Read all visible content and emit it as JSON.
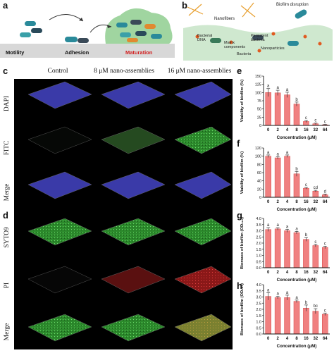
{
  "panels": {
    "a": {
      "label": "a",
      "stages": [
        "Motility",
        "Adhesion",
        "Maturation"
      ],
      "maturation_color": "#d22020"
    },
    "b": {
      "label": "b",
      "labels": {
        "nanofibers": "Nanofibers",
        "biofilm_disruption": "Biofilm disruption",
        "bacterial_dna": "Bacterial DNA",
        "matrix_components": "Matrix components",
        "persistent_bacteria": "Persistent bacteria",
        "nanoparticles": "Nanoparticles",
        "bacteria": "Bacteria"
      }
    },
    "c": {
      "label": "c",
      "columns": [
        "Control",
        "8 μM nano-assemblies",
        "16 μM nano-assemblies"
      ],
      "rows": [
        "DAPI",
        "FITC",
        "Merge"
      ]
    },
    "d": {
      "label": "d",
      "rows": [
        "SYTO9",
        "PI",
        "Merge"
      ]
    }
  },
  "colors": {
    "bar": "#f08080",
    "bar_edge": "#d94848",
    "dapi": "#3a3aa8",
    "fitc": "#2f6a2a",
    "syto9": "#35a535",
    "pi": "#b02020",
    "merge2": "#8a8a30"
  },
  "chart_data": [
    {
      "panel": "e",
      "type": "bar",
      "categories": [
        "0",
        "2",
        "4",
        "8",
        "16",
        "32",
        "64"
      ],
      "values": [
        100,
        99,
        93,
        65,
        12,
        5,
        2
      ],
      "errors": [
        12,
        8,
        8,
        6,
        3,
        2,
        1
      ],
      "letters": [
        "a",
        "a",
        "a",
        "b",
        "c",
        "c",
        "c"
      ],
      "xlabel": "Concentration (μM)",
      "ylabel": "Viability of biofilm (%)",
      "ylim": [
        0,
        150
      ],
      "yticks": [
        "0",
        "25",
        "50",
        "75",
        "100",
        "125",
        "150"
      ]
    },
    {
      "panel": "f",
      "type": "bar",
      "categories": [
        "0",
        "2",
        "4",
        "8",
        "16",
        "32",
        "64"
      ],
      "values": [
        100,
        96,
        100,
        57,
        22,
        15,
        6
      ],
      "errors": [
        3,
        3,
        3,
        6,
        2,
        2,
        2
      ],
      "letters": [
        "a",
        "a",
        "a",
        "b",
        "c",
        "cd",
        "d"
      ],
      "xlabel": "Concentration (μM)",
      "ylabel": "Viability of biofilm (%)",
      "ylim": [
        0,
        120
      ],
      "yticks": [
        "0",
        "20",
        "40",
        "60",
        "80",
        "100",
        "120"
      ]
    },
    {
      "panel": "g",
      "type": "bar",
      "categories": [
        "0",
        "2",
        "4",
        "8",
        "16",
        "32",
        "64"
      ],
      "values": [
        3.1,
        3.15,
        3.0,
        2.85,
        2.3,
        1.8,
        1.65
      ],
      "errors": [
        0.15,
        0.1,
        0.12,
        0.1,
        0.15,
        0.1,
        0.1
      ],
      "letters": [
        "a",
        "a",
        "a",
        "a",
        "b",
        "c",
        "c"
      ],
      "xlabel": "Concentration (μM)",
      "ylabel": "Biomass of biofilm (OD₅₉₀)",
      "ylim": [
        0.0,
        4.0
      ],
      "yticks": [
        "0.0",
        "0.5",
        "1.0",
        "1.5",
        "2.0",
        "2.5",
        "3.0",
        "3.5",
        "4.0"
      ]
    },
    {
      "panel": "h",
      "type": "bar",
      "categories": [
        "0",
        "2",
        "4",
        "8",
        "16",
        "32",
        "64"
      ],
      "values": [
        3.05,
        2.95,
        2.95,
        2.65,
        2.1,
        1.85,
        1.6
      ],
      "errors": [
        0.3,
        0.1,
        0.2,
        0.1,
        0.25,
        0.2,
        0.1
      ],
      "letters": [
        "a",
        "a",
        "a",
        "a",
        "b",
        "bc",
        "c"
      ],
      "xlabel": "Concentration (μM)",
      "ylabel": "Biomass of biofilm (OD₅₉₀)",
      "ylim": [
        0.0,
        4.0
      ],
      "yticks": [
        "0.0",
        "0.5",
        "1.0",
        "1.5",
        "2.0",
        "2.5",
        "3.0",
        "3.5",
        "4.0"
      ]
    }
  ]
}
